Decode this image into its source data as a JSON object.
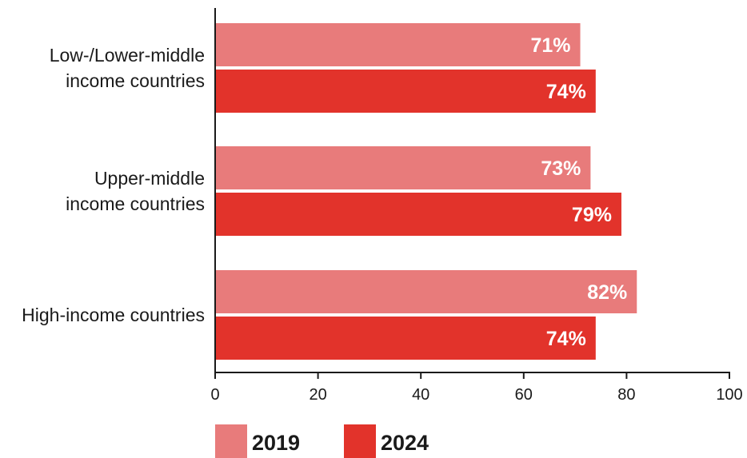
{
  "chart_data": {
    "type": "bar",
    "orientation": "horizontal",
    "categories": [
      [
        "Low-/Lower-middle",
        "income countries"
      ],
      [
        "Upper-middle",
        "income countries"
      ],
      [
        "High-income countries"
      ]
    ],
    "series": [
      {
        "name": "2019",
        "color": "#e87b7b",
        "values": [
          71,
          73,
          82
        ],
        "labels": [
          "71%",
          "73%",
          "82%"
        ]
      },
      {
        "name": "2024",
        "color": "#e2332b",
        "values": [
          74,
          79,
          74
        ],
        "labels": [
          "74%",
          "79%",
          "74%"
        ]
      }
    ],
    "xlim": [
      0,
      100
    ],
    "xticks": [
      0,
      20,
      40,
      60,
      80,
      100
    ],
    "xlabel": "",
    "ylabel": "",
    "title": "",
    "grid": false,
    "legend": "bottom-left"
  }
}
